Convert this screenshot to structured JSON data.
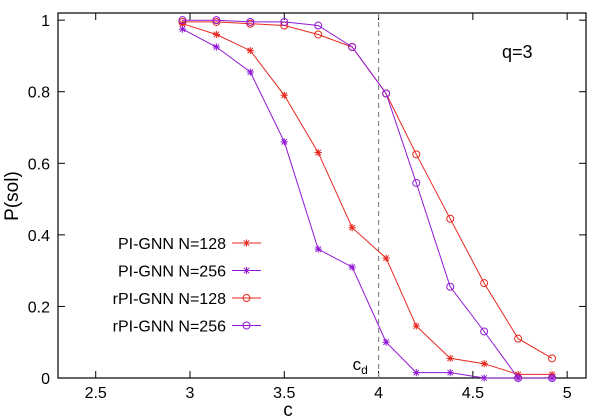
{
  "chart_data": {
    "type": "line",
    "xlabel": "c",
    "ylabel": "P(sol)",
    "xlim": [
      2.3,
      5.1
    ],
    "ylim": [
      0,
      1.02
    ],
    "x_ticks": [
      2.5,
      3,
      3.5,
      4,
      4.5,
      5
    ],
    "x_tick_labels": [
      "2.5",
      "3",
      "3.5",
      "4",
      "4.5",
      "5"
    ],
    "y_ticks": [
      0,
      0.2,
      0.4,
      0.6,
      0.8,
      1
    ],
    "y_tick_labels": [
      "0",
      "0.2",
      "0.4",
      "0.6",
      "0.8",
      "1"
    ],
    "grid": false,
    "legend_position": "bottom-left",
    "annotation": "q=3",
    "vline": {
      "x": 4.0,
      "label_main": "c",
      "label_sub": "d"
    },
    "series": [
      {
        "name": "PI-GNN N=128",
        "color": "#e8271e",
        "marker": "star",
        "x": [
          2.96,
          3.14,
          3.32,
          3.5,
          3.68,
          3.86,
          4.04,
          4.2,
          4.38,
          4.56,
          4.74,
          4.92
        ],
        "y": [
          0.99,
          0.96,
          0.915,
          0.79,
          0.63,
          0.42,
          0.335,
          0.145,
          0.055,
          0.04,
          0.01,
          0.01
        ]
      },
      {
        "name": "PI-GNN N=256",
        "color": "#9018d4",
        "marker": "star",
        "x": [
          2.96,
          3.14,
          3.32,
          3.5,
          3.68,
          3.86,
          4.04,
          4.2,
          4.38,
          4.56,
          4.74,
          4.92
        ],
        "y": [
          0.975,
          0.925,
          0.855,
          0.66,
          0.36,
          0.31,
          0.1,
          0.015,
          0.015,
          0.0,
          0.0,
          0.0
        ]
      },
      {
        "name": "rPI-GNN N=128",
        "color": "#e8271e",
        "marker": "circle",
        "x": [
          2.96,
          3.14,
          3.32,
          3.5,
          3.68,
          3.86,
          4.04,
          4.2,
          4.38,
          4.56,
          4.74,
          4.92
        ],
        "y": [
          0.995,
          0.995,
          0.99,
          0.985,
          0.96,
          0.925,
          0.795,
          0.625,
          0.445,
          0.265,
          0.11,
          0.055
        ]
      },
      {
        "name": "rPI-GNN N=256",
        "color": "#9018d4",
        "marker": "circle",
        "x": [
          2.96,
          3.14,
          3.32,
          3.5,
          3.68,
          3.86,
          4.04,
          4.2,
          4.38,
          4.56,
          4.74,
          4.92
        ],
        "y": [
          1.0,
          1.0,
          0.995,
          0.995,
          0.985,
          0.925,
          0.795,
          0.545,
          0.255,
          0.13,
          0.0,
          0.0
        ]
      }
    ]
  }
}
